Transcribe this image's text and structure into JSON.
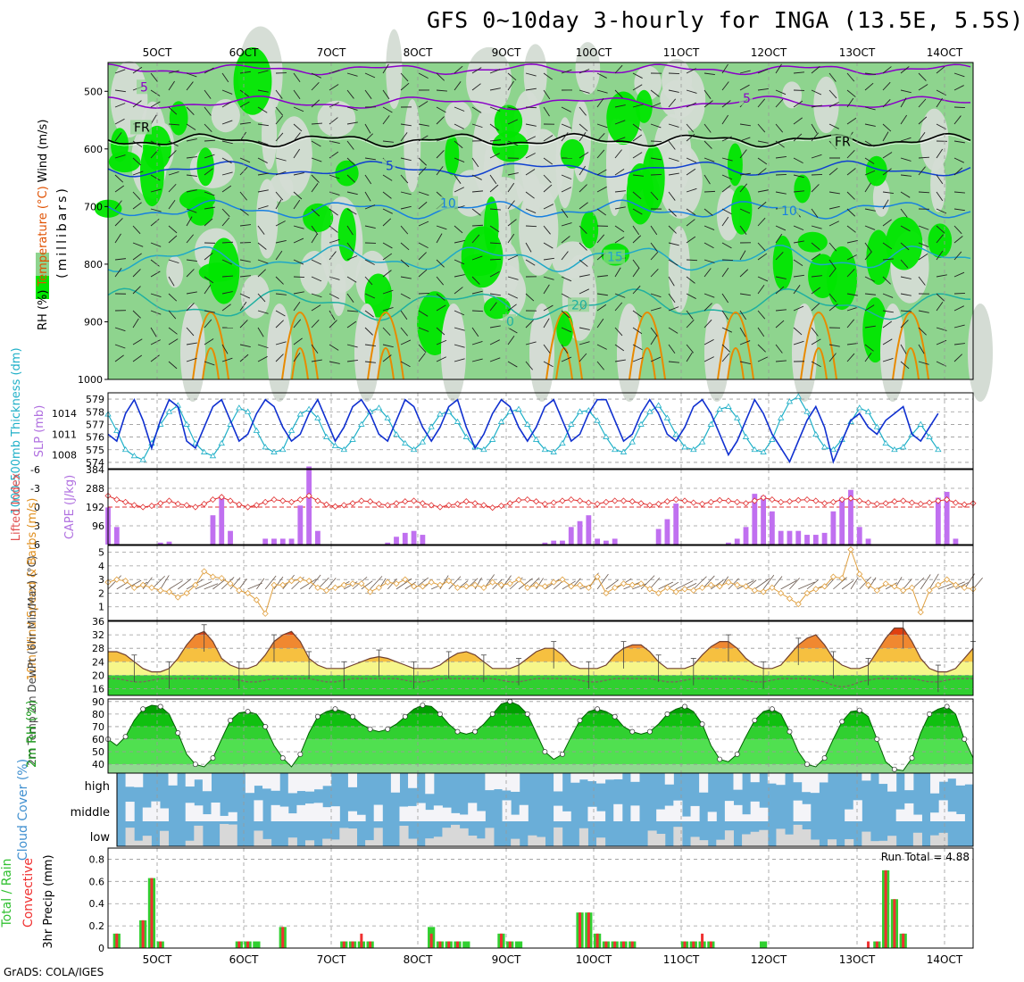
{
  "title": "GFS 0~10day 3-hourly for INGA (13.5E, 5.5S)",
  "footer": "GrADS: COLA/IGES",
  "run_total": "Run Total = 4.88",
  "colors": {
    "rh_light": "#d4dcd4",
    "rh_mid": "#8ed48e",
    "rh_dark": "#00e600",
    "temp_purple": "#8a00c8",
    "temp_blue1": "#1040d0",
    "temp_blue2": "#1880e0",
    "temp_cyan": "#20a8c8",
    "temp_teal": "#20b0a0",
    "temp_orange": "#e88a00",
    "slp": "#1030d0",
    "thick": "#20b0c8",
    "lifted": "#e03030",
    "cape": "#c070f0",
    "wind": "#e0a040",
    "rh2m": "#00c000",
    "cloud": "#6aaed8",
    "cloud_light": "#f4f4f8",
    "rain_total": "#30d030",
    "rain_conv": "#f03030"
  },
  "chart_data": [
    {
      "type": "heatmap",
      "name": "upper_air",
      "ylabel_parts": [
        "RH (%)",
        "Temperature (°C)",
        "Wind (m/s)"
      ],
      "ylabel2": "(millibars)",
      "xticks": [
        "5OCT",
        "6OCT",
        "7OCT",
        "8OCT",
        "9OCT",
        "10OCT",
        "11OCT",
        "12OCT",
        "13OCT",
        "14OCT"
      ],
      "yticks": [
        500,
        600,
        700,
        800,
        900,
        1000
      ],
      "ylim": [
        1000,
        450
      ],
      "contour_labels": [
        "5",
        "FR",
        "5",
        "10",
        "15",
        "20",
        "0",
        "FR",
        "5",
        "10"
      ]
    },
    {
      "type": "line",
      "name": "slp_thickness",
      "ylabel_left": "1000-500mb Thickness (dm)",
      "ylabel_right": "SLP (mb)",
      "yticks_left": [
        574,
        575,
        576,
        577,
        578,
        579
      ],
      "yticks_right": [
        1008,
        1011,
        1014
      ],
      "slp": [
        1011,
        1010,
        1014,
        1016,
        1013,
        1009,
        1013,
        1016,
        1015,
        1010,
        1009,
        1012,
        1015,
        1016,
        1013,
        1010,
        1011,
        1014,
        1016,
        1015,
        1012,
        1010,
        1011,
        1014,
        1016,
        1013,
        1010,
        1012,
        1015,
        1016,
        1014,
        1011,
        1010,
        1013,
        1016,
        1015,
        1012,
        1010,
        1012,
        1015,
        1016,
        1012,
        1009,
        1011,
        1014,
        1016,
        1015,
        1012,
        1010,
        1012,
        1015,
        1016,
        1013,
        1010,
        1011,
        1014,
        1016,
        1016,
        1013,
        1010,
        1011,
        1014,
        1016,
        1014,
        1011,
        1010,
        1012,
        1015,
        1016,
        1014,
        1011,
        1008,
        1010,
        1013,
        1016,
        1014,
        1011,
        1009,
        1007,
        1010,
        1013,
        1015,
        1012,
        1007,
        1010,
        1013,
        1014,
        1012,
        1011,
        1013,
        1014,
        1015,
        1011,
        1010,
        1012,
        1014
      ],
      "thickness": [
        577.8,
        576.5,
        575.0,
        574.5,
        574.2,
        575.5,
        577.0,
        578.0,
        578.5,
        577.0,
        575.5,
        574.8,
        574.5,
        575.5,
        577.0,
        578.3,
        578.0,
        576.5,
        575.2,
        574.8,
        575.0,
        576.5,
        577.8,
        578.2,
        577.5,
        576.0,
        575.3,
        575.0,
        575.8,
        577.0,
        578.0,
        578.3,
        577.5,
        576.2,
        575.5,
        575.0,
        575.6,
        576.8,
        577.8,
        578.0,
        577.2,
        576.0,
        575.2,
        575.0,
        575.8,
        577.2,
        578.0,
        578.2,
        577.0,
        575.8,
        575.0,
        574.8,
        575.5,
        577.0,
        578.0,
        578.1,
        577.3,
        576.0,
        575.0,
        574.8,
        575.6,
        577.0,
        578.0,
        578.5,
        577.5,
        576.2,
        575.2,
        575.0,
        575.6,
        577.0,
        578.2,
        578.4,
        577.5,
        576.0,
        575.0,
        574.8,
        575.8,
        577.5,
        578.8,
        579.2,
        578.0,
        576.2,
        575.2,
        575.0,
        575.8,
        577.2,
        578.3,
        578.0,
        576.8,
        575.5,
        575.0,
        575.2,
        576.2,
        577.0,
        576.0,
        575.0
      ]
    },
    {
      "type": "bar",
      "name": "cape_lifted",
      "ylabel_left": "Lifted Index",
      "ylabel_right": "CAPE (J/kg)",
      "yticks_left": [
        -6,
        -3,
        0,
        3,
        6
      ],
      "yticks_right": [
        96,
        192,
        288,
        384
      ],
      "cape": [
        190,
        90,
        0,
        0,
        0,
        0,
        10,
        15,
        0,
        0,
        0,
        0,
        150,
        240,
        70,
        0,
        0,
        0,
        30,
        30,
        30,
        30,
        200,
        400,
        70,
        0,
        0,
        0,
        0,
        0,
        0,
        0,
        10,
        40,
        60,
        70,
        50,
        0,
        0,
        0,
        0,
        0,
        0,
        0,
        0,
        0,
        0,
        0,
        0,
        0,
        10,
        20,
        20,
        90,
        120,
        150,
        30,
        20,
        30,
        0,
        0,
        0,
        0,
        80,
        130,
        210,
        0,
        0,
        0,
        0,
        0,
        10,
        30,
        90,
        260,
        250,
        170,
        70,
        70,
        70,
        50,
        50,
        60,
        170,
        240,
        280,
        90,
        30,
        0,
        0,
        0,
        0,
        0,
        0,
        0,
        240,
        270,
        30,
        0
      ],
      "lifted": [
        -1.8,
        -1.2,
        -0.8,
        -0.3,
        0.0,
        -0.2,
        -0.6,
        -1.0,
        -0.5,
        -0.3,
        0.0,
        -0.5,
        -1.2,
        -1.6,
        -1.0,
        -0.4,
        0.0,
        -0.3,
        -0.8,
        -1.2,
        -1.0,
        -0.8,
        -1.2,
        -1.8,
        -1.0,
        -0.4,
        -0.1,
        -0.3,
        -0.6,
        -1.0,
        -0.9,
        -0.5,
        -0.3,
        -0.6,
        -0.9,
        -1.0,
        -0.6,
        -0.3,
        0.0,
        -0.3,
        -0.5,
        -0.9,
        -0.6,
        -0.3,
        0.1,
        -0.2,
        -0.6,
        -1.1,
        -1.2,
        -0.9,
        -0.5,
        -0.7,
        -1.0,
        -1.2,
        -1.0,
        -0.7,
        -0.5,
        -0.8,
        -1.0,
        -1.0,
        -0.9,
        -0.6,
        -0.3,
        -0.5,
        -0.9,
        -1.2,
        -1.0,
        -0.7,
        -0.5,
        -0.8,
        -1.1,
        -1.0,
        -0.8,
        -0.6,
        -1.0,
        -1.5,
        -1.2,
        -0.8,
        -0.9,
        -1.1,
        -1.2,
        -1.0,
        -0.6,
        -0.8,
        -1.2,
        -1.4,
        -1.0,
        -0.7,
        -0.5,
        -0.6,
        -0.9,
        -1.0,
        -0.7,
        -0.5,
        -0.7,
        -1.0,
        -1.2,
        -0.7,
        -0.4,
        -0.6
      ]
    },
    {
      "type": "line",
      "name": "wind10m",
      "ylabel": "10m Wind Speed & Barbs (m/s)",
      "yticks": [
        1,
        2,
        3,
        4,
        5
      ],
      "ylim": [
        0,
        5.5
      ],
      "values": [
        2.8,
        3.0,
        2.9,
        2.4,
        2.6,
        2.4,
        2.2,
        2.1,
        1.7,
        2.0,
        2.6,
        3.6,
        3.2,
        3.1,
        2.7,
        2.2,
        2.0,
        1.5,
        0.5,
        2.6,
        2.6,
        2.9,
        3.0,
        2.9,
        2.4,
        2.2,
        2.4,
        2.6,
        2.7,
        2.7,
        2.1,
        2.4,
        2.8,
        2.7,
        3.0,
        2.5,
        2.5,
        2.8,
        2.6,
        2.9,
        2.4,
        2.5,
        2.6,
        2.4,
        2.8,
        2.6,
        2.7,
        3.0,
        2.4,
        2.6,
        2.5,
        2.8,
        3.0,
        2.5,
        2.6,
        2.4,
        3.2,
        2.0,
        2.4,
        2.7,
        2.6,
        2.7,
        2.3,
        2.0,
        2.4,
        2.1,
        2.3,
        2.2,
        2.4,
        2.6,
        2.5,
        2.8,
        2.6,
        2.5,
        2.2,
        2.1,
        2.4,
        2.0,
        1.6,
        1.2,
        2.0,
        2.3,
        2.5,
        3.2,
        3.1,
        5.2,
        3.4,
        2.6,
        2.2,
        2.7,
        2.5,
        2.2,
        2.4,
        0.6,
        2.2,
        2.6,
        3.0,
        2.6,
        2.4,
        2.3
      ]
    },
    {
      "type": "area",
      "name": "temp2m",
      "ylabel": "2m Temp 2m DewPt (6hr Min/Max) (°C)",
      "yticks": [
        16,
        20,
        24,
        28,
        32,
        36
      ],
      "ylim": [
        14,
        36
      ],
      "temp": [
        27,
        27,
        26,
        24,
        22,
        21,
        21,
        22,
        25,
        29,
        32,
        33,
        30,
        25,
        23,
        22,
        22,
        23,
        26,
        30,
        32,
        33,
        30,
        25,
        23,
        22,
        22,
        22,
        23,
        24,
        25,
        25.5,
        25,
        24,
        23,
        22,
        22,
        22,
        23,
        25,
        26.5,
        27,
        26,
        24,
        22,
        22,
        22,
        23,
        25,
        27,
        28,
        28,
        26,
        23,
        22,
        22,
        22,
        23,
        26,
        28,
        29,
        29,
        27,
        24,
        22,
        22,
        22,
        23,
        26,
        28.5,
        30,
        30,
        28,
        25,
        23,
        22,
        22,
        23,
        26,
        29,
        31,
        32,
        29,
        25,
        23,
        22,
        22,
        23,
        27,
        31,
        34,
        34,
        30,
        25,
        22,
        21,
        21,
        22,
        25,
        28
      ],
      "dewpt": [
        19,
        19,
        18.5,
        18,
        18,
        18.5,
        19,
        19,
        19,
        19,
        19,
        19,
        19,
        19,
        19,
        18.5,
        18,
        18,
        18.5,
        19,
        19,
        19,
        19,
        19,
        18.5,
        18,
        18,
        18.5,
        19,
        19,
        19,
        19,
        19,
        19,
        18.5,
        18,
        18,
        18.5,
        19,
        19,
        19,
        19,
        19,
        19,
        19,
        18.5,
        18,
        18,
        18.5,
        19,
        19,
        19,
        19,
        19,
        18.5,
        18,
        18,
        18.5,
        19,
        19,
        19,
        19,
        19,
        18.5,
        18,
        18,
        18.5,
        19,
        19,
        19,
        19,
        19,
        19,
        18.5,
        18,
        18,
        18.5,
        19,
        19,
        19,
        19,
        18.5,
        18,
        17,
        16.5,
        17,
        18,
        18.5,
        19,
        19,
        19,
        19,
        19,
        18.5,
        18,
        18,
        18.5,
        19,
        19,
        19
      ]
    },
    {
      "type": "area",
      "name": "rh2m",
      "ylabel": "2m RH (%)",
      "yticks": [
        40,
        50,
        60,
        70,
        80,
        90
      ],
      "ylim": [
        33,
        92
      ],
      "values": [
        60,
        55,
        62,
        75,
        84,
        87,
        86,
        80,
        65,
        48,
        40,
        38,
        45,
        60,
        75,
        81,
        82,
        80,
        70,
        55,
        45,
        38,
        48,
        65,
        78,
        82,
        84,
        82,
        78,
        72,
        68,
        66,
        68,
        72,
        78,
        84,
        87,
        86,
        80,
        72,
        66,
        64,
        66,
        72,
        80,
        88,
        90,
        87,
        80,
        65,
        50,
        44,
        48,
        62,
        75,
        82,
        84,
        82,
        78,
        70,
        66,
        64,
        66,
        72,
        80,
        84,
        86,
        82,
        72,
        55,
        44,
        42,
        48,
        62,
        75,
        82,
        84,
        80,
        66,
        50,
        40,
        38,
        45,
        60,
        74,
        82,
        83,
        78,
        60,
        42,
        36,
        35,
        45,
        65,
        80,
        84,
        86,
        80,
        60,
        45
      ]
    },
    {
      "type": "area",
      "name": "cloud_cover",
      "ylabel": "Cloud Cover (%)",
      "levels": [
        "high",
        "middle",
        "low"
      ]
    },
    {
      "type": "bar",
      "name": "precip",
      "ylabel": "3hr Precip (mm)",
      "legend_total": "Total / Rain",
      "legend_conv": "Convective",
      "yticks": [
        0,
        0.2,
        0.4,
        0.6,
        0.8
      ],
      "ylim": [
        0,
        0.9
      ],
      "total": [
        0,
        0.13,
        0,
        0,
        0.25,
        0.63,
        0.06,
        0,
        0,
        0,
        0,
        0,
        0,
        0,
        0,
        0.06,
        0.06,
        0.06,
        0,
        0,
        0.19,
        0,
        0,
        0,
        0,
        0,
        0,
        0.06,
        0.06,
        0.06,
        0.06,
        0,
        0,
        0,
        0,
        0,
        0,
        0.19,
        0.06,
        0.06,
        0.06,
        0.06,
        0,
        0,
        0,
        0.13,
        0.06,
        0.06,
        0,
        0,
        0,
        0,
        0,
        0,
        0.32,
        0.32,
        0.13,
        0.06,
        0.06,
        0.06,
        0.06,
        0,
        0,
        0,
        0,
        0,
        0.06,
        0.06,
        0.06,
        0.06,
        0,
        0,
        0,
        0,
        0,
        0.06,
        0,
        0,
        0,
        0,
        0,
        0,
        0,
        0,
        0,
        0,
        0,
        0,
        0.06,
        0.7,
        0.44,
        0.13,
        0,
        0,
        0,
        0,
        0,
        0,
        0,
        0
      ],
      "conv": [
        0,
        0.13,
        0,
        0,
        0.25,
        0.63,
        0.06,
        0,
        0,
        0,
        0,
        0,
        0,
        0,
        0,
        0.06,
        0.06,
        0,
        0,
        0,
        0.19,
        0,
        0,
        0,
        0,
        0,
        0,
        0.06,
        0.06,
        0.13,
        0.06,
        0,
        0,
        0,
        0,
        0,
        0,
        0.13,
        0.06,
        0.06,
        0.06,
        0,
        0,
        0,
        0,
        0.13,
        0.06,
        0,
        0,
        0,
        0,
        0,
        0,
        0,
        0.32,
        0.32,
        0.13,
        0.06,
        0.06,
        0.06,
        0.06,
        0,
        0,
        0,
        0,
        0,
        0.06,
        0.06,
        0.13,
        0.06,
        0,
        0,
        0,
        0,
        0,
        0,
        0,
        0,
        0,
        0,
        0,
        0,
        0,
        0,
        0,
        0,
        0,
        0.06,
        0.06,
        0.7,
        0.44,
        0.13,
        0,
        0,
        0,
        0,
        0,
        0,
        0,
        0
      ]
    }
  ]
}
